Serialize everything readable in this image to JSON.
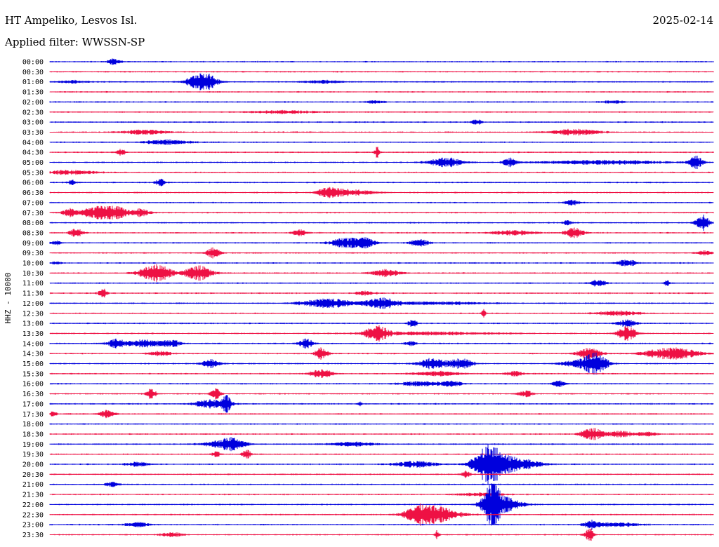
{
  "header": {
    "station": "HT Ampeliko, Lesvos Isl.",
    "date": "2025-02-14",
    "filter": "Applied filter: WWSSN-SP"
  },
  "colors": {
    "trace_a": "#0000dd",
    "trace_b": "#ee1144",
    "text": "#000000",
    "background": "#ffffff"
  },
  "chart_data": {
    "type": "line",
    "subtype": "helicorder",
    "ylabel": "HHZ - 10000",
    "row_minutes": 30,
    "x_range_minutes": [
      0,
      30
    ],
    "series_colors": [
      "#0000dd",
      "#ee1144"
    ],
    "rows": [
      {
        "label": "00:00",
        "events": [
          [
            2.9,
            0.3,
            4
          ]
        ]
      },
      {
        "label": "00:30",
        "events": []
      },
      {
        "label": "01:00",
        "events": [
          [
            6.9,
            0.6,
            14
          ],
          [
            1.0,
            0.6,
            2
          ],
          [
            12.4,
            0.8,
            2
          ]
        ]
      },
      {
        "label": "01:30",
        "events": []
      },
      {
        "label": "02:00",
        "events": [
          [
            14.7,
            0.4,
            2
          ],
          [
            25.5,
            0.5,
            2
          ]
        ]
      },
      {
        "label": "02:30",
        "events": [
          [
            10.5,
            1.5,
            2
          ]
        ]
      },
      {
        "label": "03:00",
        "events": [
          [
            19.3,
            0.2,
            4
          ]
        ]
      },
      {
        "label": "03:30",
        "events": [
          [
            4.3,
            1.0,
            3
          ],
          [
            23.7,
            1.1,
            4
          ]
        ]
      },
      {
        "label": "04:00",
        "events": [
          [
            5.3,
            1.0,
            3
          ]
        ]
      },
      {
        "label": "04:30",
        "events": [
          [
            3.2,
            0.2,
            5
          ],
          [
            14.8,
            0.1,
            9
          ]
        ]
      },
      {
        "label": "05:00",
        "events": [
          [
            17.9,
            0.7,
            7
          ],
          [
            20.8,
            0.3,
            6
          ],
          [
            29.2,
            0.3,
            9
          ],
          [
            25.0,
            2.5,
            3
          ]
        ]
      },
      {
        "label": "05:30",
        "events": [
          [
            1.0,
            1.0,
            3
          ]
        ]
      },
      {
        "label": "06:00",
        "events": [
          [
            5.0,
            0.2,
            5
          ],
          [
            1.0,
            0.2,
            3
          ]
        ]
      },
      {
        "label": "06:30",
        "events": [
          [
            12.6,
            0.5,
            6
          ],
          [
            13.6,
            1.0,
            4
          ]
        ]
      },
      {
        "label": "07:00",
        "events": [
          [
            23.6,
            0.3,
            4
          ]
        ]
      },
      {
        "label": "07:30",
        "events": [
          [
            0.9,
            0.3,
            6
          ],
          [
            2.0,
            0.6,
            7
          ],
          [
            2.9,
            0.6,
            9
          ],
          [
            4.1,
            0.4,
            5
          ]
        ]
      },
      {
        "label": "08:00",
        "events": [
          [
            29.5,
            0.3,
            11
          ],
          [
            23.4,
            0.2,
            3
          ]
        ]
      },
      {
        "label": "08:30",
        "events": [
          [
            1.2,
            0.3,
            6
          ],
          [
            11.3,
            0.3,
            5
          ],
          [
            23.7,
            0.4,
            7
          ],
          [
            21.0,
            1.0,
            3
          ]
        ]
      },
      {
        "label": "09:00",
        "events": [
          [
            13.3,
            0.6,
            6
          ],
          [
            14.2,
            0.5,
            7
          ],
          [
            16.7,
            0.4,
            5
          ],
          [
            0.3,
            0.2,
            3
          ]
        ]
      },
      {
        "label": "09:30",
        "events": [
          [
            7.4,
            0.3,
            7
          ],
          [
            29.6,
            0.3,
            3
          ]
        ]
      },
      {
        "label": "10:00",
        "events": [
          [
            26.1,
            0.4,
            5
          ],
          [
            0.3,
            0.2,
            2
          ]
        ]
      },
      {
        "label": "10:30",
        "events": [
          [
            4.8,
            0.7,
            12
          ],
          [
            6.7,
            0.6,
            10
          ],
          [
            15.2,
            0.6,
            5
          ]
        ]
      },
      {
        "label": "11:00",
        "events": [
          [
            24.8,
            0.3,
            5
          ],
          [
            27.9,
            0.1,
            5
          ]
        ]
      },
      {
        "label": "11:30",
        "events": [
          [
            2.4,
            0.2,
            6
          ],
          [
            14.3,
            0.4,
            3
          ]
        ]
      },
      {
        "label": "12:00",
        "events": [
          [
            12.6,
            1.2,
            6
          ],
          [
            15.0,
            0.7,
            7
          ],
          [
            17.5,
            2.0,
            2
          ]
        ]
      },
      {
        "label": "12:30",
        "events": [
          [
            19.6,
            0.1,
            6
          ],
          [
            25.7,
            1.0,
            3
          ]
        ]
      },
      {
        "label": "13:00",
        "events": [
          [
            16.4,
            0.2,
            5
          ],
          [
            26.1,
            0.4,
            5
          ]
        ]
      },
      {
        "label": "13:30",
        "events": [
          [
            14.8,
            0.5,
            10
          ],
          [
            26.1,
            0.4,
            10
          ],
          [
            17.0,
            3.0,
            2
          ]
        ]
      },
      {
        "label": "14:00",
        "events": [
          [
            3.0,
            0.4,
            6
          ],
          [
            4.3,
            0.8,
            5
          ],
          [
            11.6,
            0.3,
            7
          ],
          [
            5.5,
            0.4,
            5
          ],
          [
            16.3,
            0.2,
            4
          ]
        ]
      },
      {
        "label": "14:30",
        "events": [
          [
            12.3,
            0.3,
            8
          ],
          [
            24.4,
            0.5,
            9
          ],
          [
            28.1,
            1.2,
            8
          ],
          [
            5.0,
            0.5,
            3
          ]
        ]
      },
      {
        "label": "15:00",
        "events": [
          [
            7.3,
            0.4,
            6
          ],
          [
            17.3,
            0.6,
            8
          ],
          [
            18.6,
            0.5,
            8
          ],
          [
            24.7,
            0.5,
            13
          ],
          [
            24.0,
            0.8,
            5
          ]
        ]
      },
      {
        "label": "15:30",
        "events": [
          [
            12.3,
            0.5,
            6
          ],
          [
            17.5,
            1.0,
            3
          ],
          [
            21.0,
            0.4,
            3
          ]
        ]
      },
      {
        "label": "16:00",
        "events": [
          [
            16.8,
            1.0,
            3
          ],
          [
            18.2,
            0.4,
            4
          ],
          [
            23.0,
            0.3,
            4
          ]
        ]
      },
      {
        "label": "16:30",
        "events": [
          [
            4.6,
            0.2,
            8
          ],
          [
            7.5,
            0.2,
            9
          ],
          [
            21.5,
            0.3,
            5
          ]
        ]
      },
      {
        "label": "17:00",
        "events": [
          [
            7.3,
            0.7,
            6
          ],
          [
            8.0,
            0.2,
            10
          ],
          [
            14.0,
            0.1,
            3
          ]
        ]
      },
      {
        "label": "17:30",
        "events": [
          [
            2.6,
            0.3,
            6
          ],
          [
            0.1,
            0.2,
            3
          ]
        ]
      },
      {
        "label": "18:00",
        "events": []
      },
      {
        "label": "18:30",
        "events": [
          [
            24.5,
            0.5,
            8
          ],
          [
            25.8,
            0.6,
            4
          ],
          [
            27.0,
            0.4,
            3
          ]
        ]
      },
      {
        "label": "19:00",
        "events": [
          [
            7.8,
            0.8,
            5
          ],
          [
            8.3,
            0.5,
            6
          ],
          [
            13.7,
            1.0,
            3
          ]
        ]
      },
      {
        "label": "19:30",
        "events": [
          [
            8.9,
            0.2,
            6
          ],
          [
            7.5,
            0.2,
            4
          ]
        ]
      },
      {
        "label": "20:00",
        "events": [
          [
            19.8,
            0.6,
            24
          ],
          [
            20.8,
            1.2,
            10
          ],
          [
            16.5,
            0.9,
            4
          ],
          [
            4.0,
            0.5,
            3
          ]
        ]
      },
      {
        "label": "20:30",
        "events": [
          [
            18.8,
            0.2,
            5
          ]
        ]
      },
      {
        "label": "21:00",
        "events": [
          [
            2.8,
            0.3,
            3
          ]
        ]
      },
      {
        "label": "21:30",
        "events": [
          [
            19.5,
            1.0,
            2
          ]
        ]
      },
      {
        "label": "22:00",
        "events": [
          [
            20.0,
            0.4,
            26
          ],
          [
            20.5,
            0.8,
            10
          ]
        ]
      },
      {
        "label": "22:30",
        "events": [
          [
            16.8,
            0.7,
            14
          ],
          [
            17.8,
            0.8,
            8
          ]
        ]
      },
      {
        "label": "23:00",
        "events": [
          [
            4.0,
            0.5,
            3
          ],
          [
            24.5,
            0.3,
            5
          ],
          [
            25.5,
            1.0,
            3
          ]
        ]
      },
      {
        "label": "23:30",
        "events": [
          [
            17.5,
            0.1,
            6
          ],
          [
            24.4,
            0.2,
            9
          ],
          [
            5.5,
            0.5,
            3
          ]
        ]
      }
    ]
  }
}
